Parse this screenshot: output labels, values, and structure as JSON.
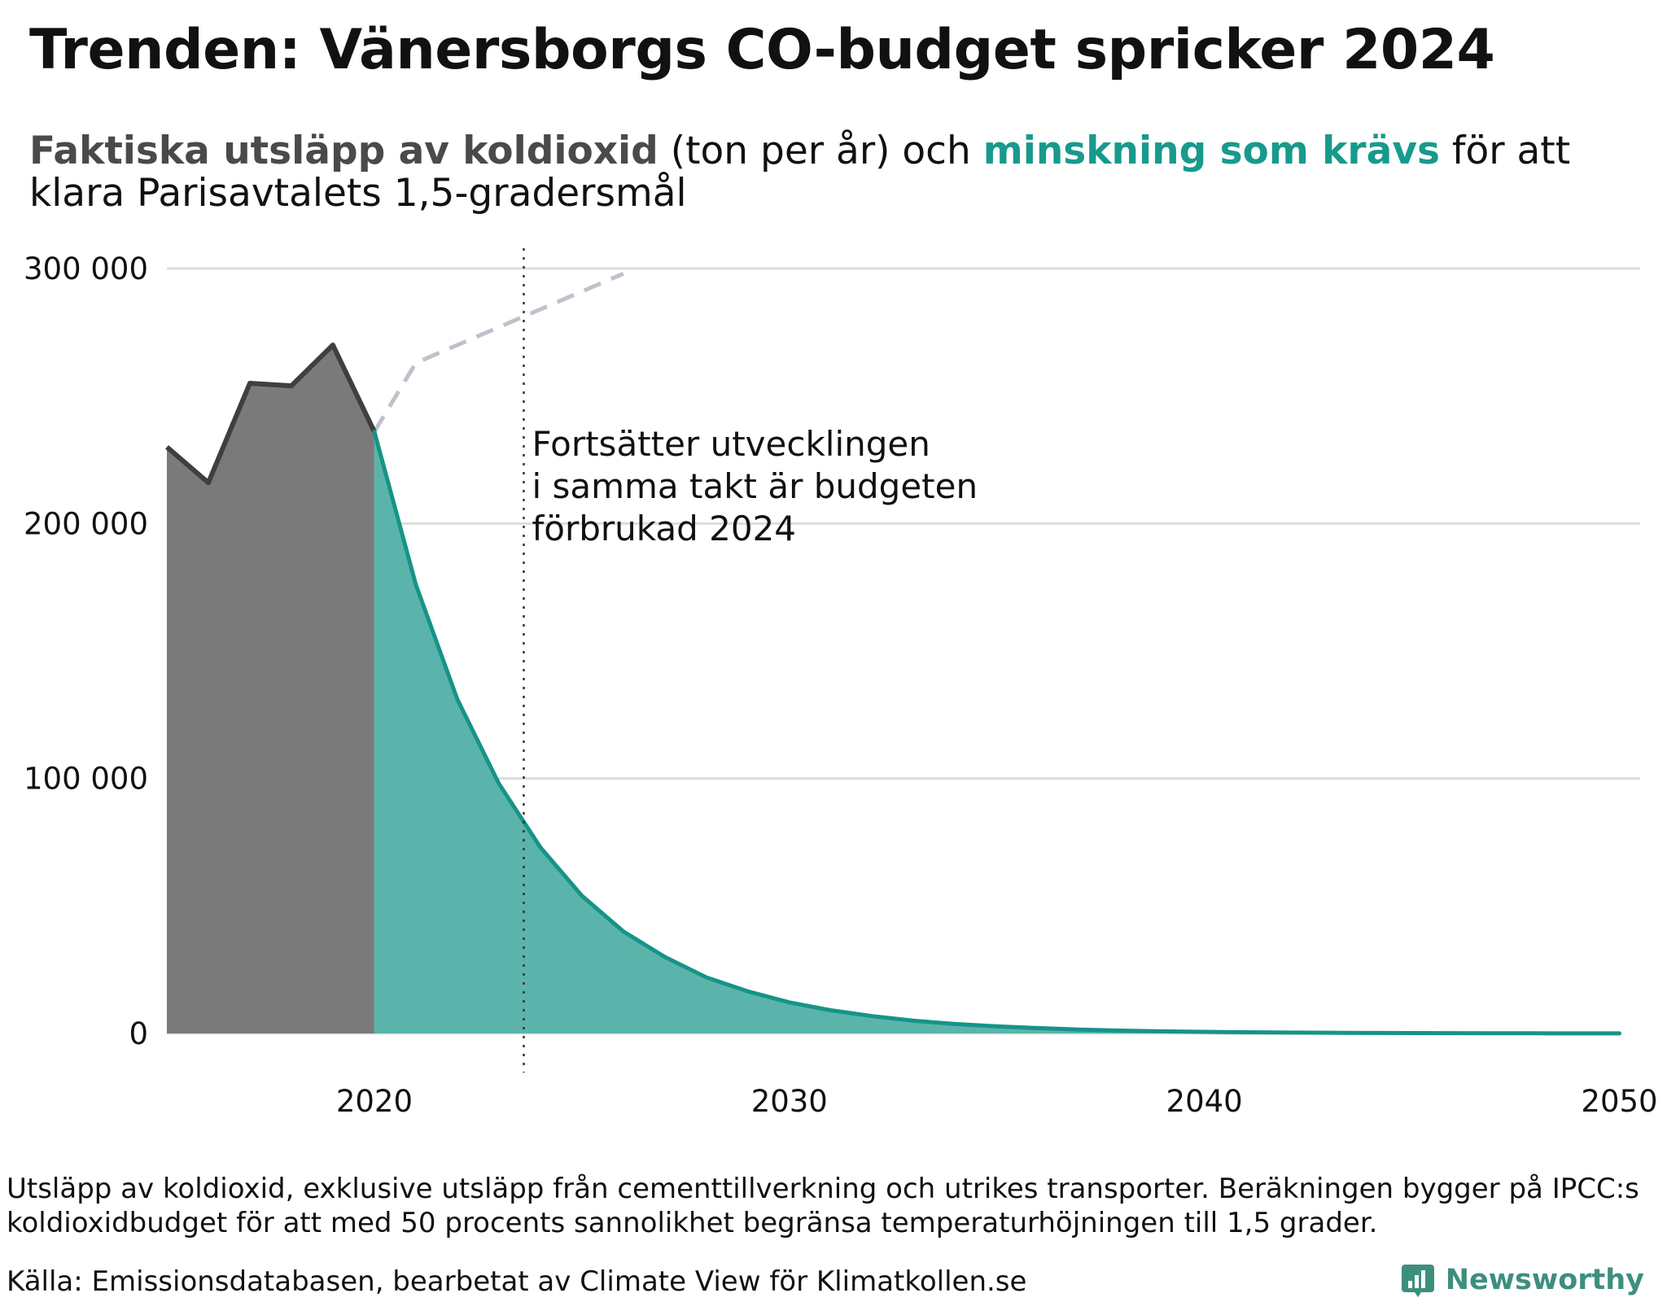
{
  "header": {
    "title": "Trenden: Vänersborgs CO-budget spricker 2024",
    "subtitle_part1": "Faktiska utsläpp av koldioxid",
    "subtitle_part2": " (ton per år) och ",
    "subtitle_part3": "minskning som krävs",
    "subtitle_part4": " för att klara Parisavtalets 1,5-gradersmål"
  },
  "footer": {
    "note": "Utsläpp av koldioxid, exklusive utsläpp från cementtillverkning och utrikes transporter. Beräkningen bygger på IPCC:s koldioxidbudget för att med 50 procents sannolikhet begränsa temperaturhöjningen till 1,5 grader.",
    "source": "Källa: Emissionsdatabasen, bearbetat av Climate View för Klimatkollen.se",
    "brand": "Newsworthy"
  },
  "colors": {
    "actual_fill": "#7a7a7a",
    "actual_line": "#3f3f3f",
    "required_fill": "#5bb4ab",
    "required_line": "#159487",
    "trend_line": "#c0c0cc",
    "grid": "#dddddd",
    "brand": "#3d8f7d"
  },
  "icons": {
    "brand_logo": "bar-chart-speech-icon"
  },
  "chart_data": {
    "type": "area",
    "title": "",
    "xlabel": "",
    "ylabel": "",
    "xlim": [
      2015,
      2050.5
    ],
    "ylim": [
      0,
      300000
    ],
    "x_ticks": [
      2020,
      2030,
      2040,
      2050
    ],
    "x_tick_labels": [
      "2020",
      "2030",
      "2040",
      "2050"
    ],
    "y_ticks": [
      0,
      100000,
      200000,
      300000
    ],
    "y_tick_labels": [
      "0",
      "100 000",
      "200 000",
      "300 000"
    ],
    "grid": "horizontal",
    "series": [
      {
        "name": "Faktiska utsläpp av koldioxid",
        "style": "area",
        "x": [
          2015,
          2016,
          2017,
          2018,
          2019,
          2020
        ],
        "values": [
          230000,
          216000,
          255000,
          254000,
          270000,
          236000
        ]
      },
      {
        "name": "minskning som krävs",
        "style": "area",
        "x": [
          2020,
          2021,
          2022,
          2023,
          2024,
          2025,
          2026,
          2027,
          2028,
          2029,
          2030,
          2031,
          2032,
          2033,
          2034,
          2035,
          2036,
          2037,
          2038,
          2039,
          2040,
          2041,
          2042,
          2043,
          2044,
          2045,
          2046,
          2047,
          2048,
          2049,
          2050
        ],
        "values": [
          236000,
          176000,
          131000,
          98000,
          73000,
          54000,
          40000,
          30000,
          22000,
          16500,
          12200,
          9100,
          6800,
          5000,
          3700,
          2800,
          2100,
          1500,
          1100,
          850,
          630,
          470,
          350,
          260,
          190,
          140,
          105,
          80,
          60,
          45,
          30
        ]
      },
      {
        "style": "dashed",
        "x": [
          2020,
          2021,
          2022,
          2023,
          2024,
          2025,
          2026
        ],
        "values": [
          236000,
          263000,
          270000,
          277000,
          284000,
          291000,
          298000
        ]
      }
    ],
    "annotations": [
      {
        "x": 2023.6,
        "style": "dotted-vertical",
        "lines": [
          "Fortsätter utvecklingen",
          "i samma takt är budgeten",
          "förbrukad 2024"
        ]
      }
    ]
  }
}
